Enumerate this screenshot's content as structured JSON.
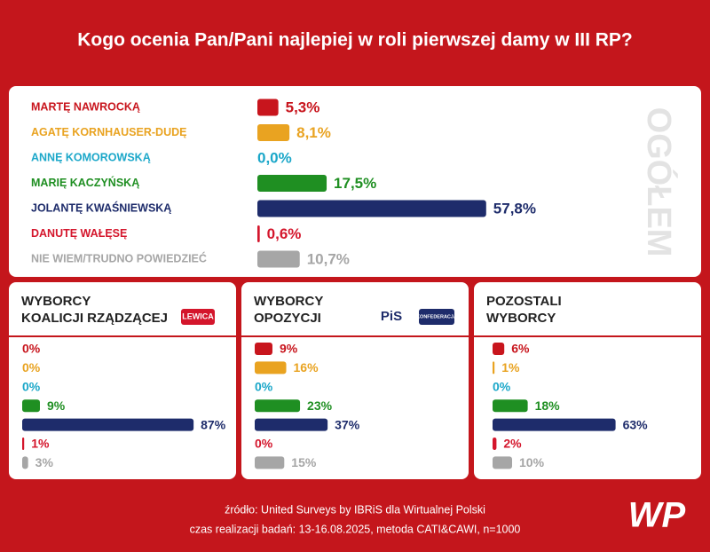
{
  "title": "Kogo ocenia Pan/Pani najlepiej w roli pierwszej damy w III RP?",
  "source": "źródło: United Surveys by IBRiS dla Wirtualnej Polski",
  "note": "czas realizacji badań: 13-16.08.2025, metoda CATI&CAWI, n=1000",
  "brand": "WP",
  "chart_data": [
    {
      "type": "bar",
      "orientation": "horizontal",
      "side_label": "OGÓŁEM",
      "categories": [
        "MARTĘ NAWROCKĄ",
        "AGATĘ KORNHAUSER-DUDĘ",
        "ANNĘ KOMOROWSKĄ",
        "MARIĘ KACZYŃSKĄ",
        "JOLANTĘ KWAŚNIEWSKĄ",
        "DANUTĘ WAŁĘSĘ",
        "NIE WIEM/TRUDNO POWIEDZIEĆ"
      ],
      "values": [
        5.3,
        8.1,
        0.0,
        17.5,
        57.8,
        0.6,
        10.7
      ],
      "value_labels": [
        "5,3%",
        "8,1%",
        "0,0%",
        "17,5%",
        "57,8%",
        "0,6%",
        "10,7%"
      ],
      "colors": [
        "#c8151d",
        "#e9a321",
        "#1ba7c9",
        "#1f8f22",
        "#1e2c6b",
        "#d4162c",
        "#a6a6a6"
      ]
    },
    {
      "type": "bar",
      "orientation": "horizontal",
      "title": [
        "WYBORCY",
        "KOALICJI RZĄDZĄCEJ"
      ],
      "logos": [
        "LEWICA"
      ],
      "values": [
        0,
        0,
        0,
        9,
        87,
        1,
        3
      ],
      "value_labels": [
        "0%",
        "0%",
        "0%",
        "9%",
        "87%",
        "1%",
        "3%"
      ],
      "colors": [
        "#c8151d",
        "#e9a321",
        "#1ba7c9",
        "#1f8f22",
        "#1e2c6b",
        "#d4162c",
        "#a6a6a6"
      ]
    },
    {
      "type": "bar",
      "orientation": "horizontal",
      "title": [
        "WYBORCY",
        "OPOZYCJI"
      ],
      "logos": [
        "PiS",
        "KONFEDERACJA"
      ],
      "values": [
        9,
        16,
        0,
        23,
        37,
        0,
        15
      ],
      "value_labels": [
        "9%",
        "16%",
        "0%",
        "23%",
        "37%",
        "0%",
        "15%"
      ],
      "colors": [
        "#c8151d",
        "#e9a321",
        "#1ba7c9",
        "#1f8f22",
        "#1e2c6b",
        "#d4162c",
        "#a6a6a6"
      ]
    },
    {
      "type": "bar",
      "orientation": "horizontal",
      "title": [
        "POZOSTALI",
        "WYBORCY"
      ],
      "values": [
        6,
        1,
        0,
        18,
        63,
        2,
        10
      ],
      "value_labels": [
        "6%",
        "1%",
        "0%",
        "18%",
        "63%",
        "2%",
        "10%"
      ],
      "colors": [
        "#c8151d",
        "#e9a321",
        "#1ba7c9",
        "#1f8f22",
        "#1e2c6b",
        "#d4162c",
        "#a6a6a6"
      ]
    }
  ]
}
